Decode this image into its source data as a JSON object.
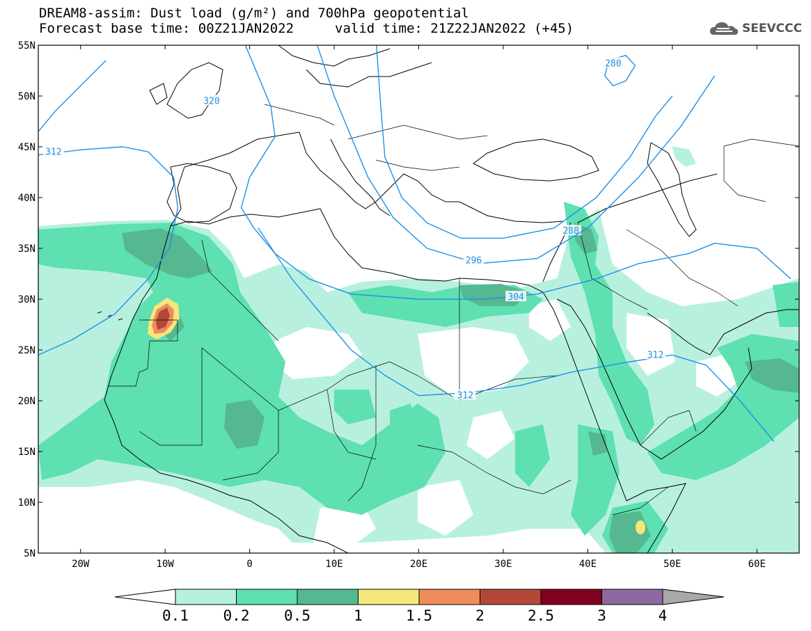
{
  "title": {
    "line1": "DREAM8-assim: Dust load (g/m²) and 700hPa geopotential",
    "line2": "Forecast base time: 00Z21JAN2022",
    "valid": "valid time: 21Z22JAN2022 (+45)"
  },
  "logo": {
    "text": "SEEVCCC",
    "icon": "cloud-icon"
  },
  "map": {
    "lon_range": [
      -25,
      65
    ],
    "lat_range": [
      5,
      55
    ],
    "lat_ticks": [
      {
        "v": 55,
        "t": "55N"
      },
      {
        "v": 50,
        "t": "50N"
      },
      {
        "v": 45,
        "t": "45N"
      },
      {
        "v": 40,
        "t": "40N"
      },
      {
        "v": 35,
        "t": "35N"
      },
      {
        "v": 30,
        "t": "30N"
      },
      {
        "v": 25,
        "t": "25N"
      },
      {
        "v": 20,
        "t": "20N"
      },
      {
        "v": 15,
        "t": "15N"
      },
      {
        "v": 10,
        "t": "10N"
      },
      {
        "v": 5,
        "t": "5N"
      }
    ],
    "lon_ticks": [
      {
        "v": -20,
        "t": "20W"
      },
      {
        "v": -10,
        "t": "10W"
      },
      {
        "v": 0,
        "t": "0"
      },
      {
        "v": 10,
        "t": "10E"
      },
      {
        "v": 20,
        "t": "20E"
      },
      {
        "v": 30,
        "t": "30E"
      },
      {
        "v": 40,
        "t": "40E"
      },
      {
        "v": 50,
        "t": "50E"
      },
      {
        "v": 60,
        "t": "60E"
      }
    ],
    "contour_color": "#1e90e6",
    "contours": [
      {
        "label": "280",
        "label_at": [
          43,
          53.2
        ],
        "pts": [
          [
            42,
            52
          ],
          [
            42.5,
            53.5
          ],
          [
            44.5,
            54
          ],
          [
            45.6,
            53
          ],
          [
            44.5,
            51.5
          ],
          [
            43,
            51
          ],
          [
            42,
            52
          ]
        ]
      },
      {
        "label": "288",
        "label_at": [
          38,
          36.7
        ],
        "pts": [
          [
            15,
            55
          ],
          [
            15.5,
            49
          ],
          [
            16,
            44
          ],
          [
            18,
            40
          ],
          [
            21,
            37.5
          ],
          [
            25,
            36
          ],
          [
            30,
            36
          ],
          [
            36,
            37
          ],
          [
            41,
            40
          ],
          [
            45,
            44
          ],
          [
            48,
            48
          ],
          [
            50,
            50
          ]
        ]
      },
      {
        "label": "296",
        "label_at": [
          26.5,
          33.8
        ],
        "pts": [
          [
            8,
            55
          ],
          [
            10,
            50
          ],
          [
            12,
            46
          ],
          [
            14,
            42
          ],
          [
            17,
            38
          ],
          [
            21,
            35
          ],
          [
            27,
            33.5
          ],
          [
            34,
            34
          ],
          [
            40,
            37
          ],
          [
            46,
            42
          ],
          [
            51,
            47
          ],
          [
            55,
            52
          ]
        ]
      },
      {
        "label": "304",
        "label_at": [
          31.5,
          30.2
        ],
        "pts": [
          [
            -0.5,
            55
          ],
          [
            1,
            52
          ],
          [
            2.5,
            49
          ],
          [
            3,
            46
          ],
          [
            0,
            42
          ],
          [
            -1,
            39
          ],
          [
            0.5,
            37
          ],
          [
            3,
            34.5
          ],
          [
            7,
            32
          ],
          [
            12,
            30.5
          ],
          [
            20,
            30
          ],
          [
            28,
            30
          ],
          [
            34,
            30.5
          ],
          [
            41,
            32
          ],
          [
            46,
            33.5
          ],
          [
            52,
            34.5
          ],
          [
            55,
            35.5
          ],
          [
            60,
            35
          ],
          [
            64,
            32
          ]
        ]
      },
      {
        "label": "312",
        "label_at": [
          -23.2,
          44.5
        ],
        "pts": [
          [
            -25,
            44.2
          ],
          [
            -20,
            44.7
          ],
          [
            -15,
            45
          ],
          [
            -12,
            44.5
          ],
          [
            -9,
            42
          ],
          [
            -8.5,
            39
          ],
          [
            -9.5,
            35
          ],
          [
            -12,
            32
          ],
          [
            -16,
            28.5
          ],
          [
            -21,
            26
          ],
          [
            -25,
            24.5
          ]
        ]
      },
      {
        "label": "312",
        "label_at": [
          25.5,
          20.5
        ],
        "pts": [
          [
            1,
            37
          ],
          [
            5,
            32
          ],
          [
            9,
            28
          ],
          [
            12,
            25
          ],
          [
            16,
            22.5
          ],
          [
            20,
            20.5
          ],
          [
            26,
            20.8
          ],
          [
            32,
            21.5
          ],
          [
            38,
            22.8
          ],
          [
            44,
            23.7
          ],
          [
            50,
            24.5
          ],
          [
            54,
            23.5
          ],
          [
            58,
            20
          ],
          [
            62,
            16
          ]
        ]
      },
      {
        "label": "312",
        "label_at": [
          48,
          24.5
        ],
        "pts": [
          [
            48,
            24.5
          ],
          [
            48,
            24.5
          ]
        ]
      },
      {
        "label": "320",
        "label_at": [
          -4.5,
          49.5
        ],
        "pts": [
          [
            -17,
            53.5
          ],
          [
            -20,
            51
          ],
          [
            -23,
            48.5
          ],
          [
            -25,
            46.5
          ]
        ]
      }
    ]
  },
  "colorbar": {
    "ticks": [
      "0.1",
      "0.2",
      "0.5",
      "1",
      "1.5",
      "2",
      "2.5",
      "3",
      "4"
    ],
    "colors": [
      "#b8f0e0",
      "#5ee0b0",
      "#55b890",
      "#f5e87a",
      "#f08c5c",
      "#b34838",
      "#800020",
      "#8c6aa0",
      "#a8a8a8"
    ]
  }
}
